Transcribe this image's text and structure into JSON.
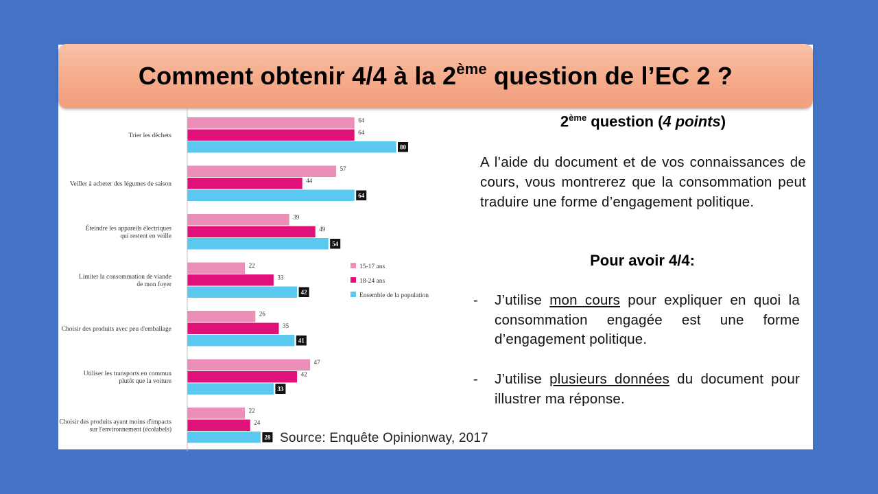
{
  "title": {
    "before": "Comment obtenir 4/4 à la 2",
    "sup": "ème",
    "after": " question de l’EC 2 ?"
  },
  "question": {
    "heading_pre": "2",
    "heading_sup": "ème",
    "heading_mid": " question (",
    "heading_points": "4 points",
    "heading_end": ")",
    "body": "A l’aide du document et de vos connaissances de cours, vous montrerez que la consommation peut traduire une forme d’engagement politique."
  },
  "criteria": {
    "heading": "Pour avoir 4/4:",
    "bullets": [
      {
        "dash": "-",
        "pre": "J’utilise ",
        "underlined": "mon cours",
        "post": " pour expliquer en quoi la consommation engagée est une forme d’engagement politique."
      },
      {
        "dash": "-",
        "pre": "J’utilise ",
        "underlined": "plusieurs données",
        "post": " du document pour illustrer ma réponse."
      }
    ]
  },
  "source": "Source: Enquête Opinionway, 2017",
  "chart_data": {
    "type": "bar",
    "orientation": "horizontal",
    "categories": [
      [
        "Trier les déchets"
      ],
      [
        "Veiller à acheter des légumes de saison"
      ],
      [
        "Éteindre les appareils électriques",
        "qui restent en veille"
      ],
      [
        "Limiter la consommation de viande",
        "de mon foyer"
      ],
      [
        "Choisir des produits avec peu d'emballage"
      ],
      [
        "Utiliser les transports en commun",
        "plutôt que la voiture"
      ],
      [
        "Choisir des produits ayant moins d'impacts",
        "sur l'environnement (écolabels)"
      ]
    ],
    "series": [
      {
        "name": "15-17 ans",
        "color": "#ec8fb8",
        "values": [
          64,
          57,
          39,
          22,
          26,
          47,
          22
        ]
      },
      {
        "name": "18-24 ans",
        "color": "#e0127a",
        "values": [
          64,
          44,
          49,
          33,
          35,
          42,
          24
        ]
      },
      {
        "name": "Ensemble de la population",
        "color": "#5bc8ef",
        "values": [
          80,
          64,
          54,
          42,
          41,
          33,
          28
        ]
      }
    ],
    "boxed_series": "Ensemble de la population",
    "legend_position": "right",
    "xlim": [
      0,
      100
    ],
    "grid": false
  }
}
